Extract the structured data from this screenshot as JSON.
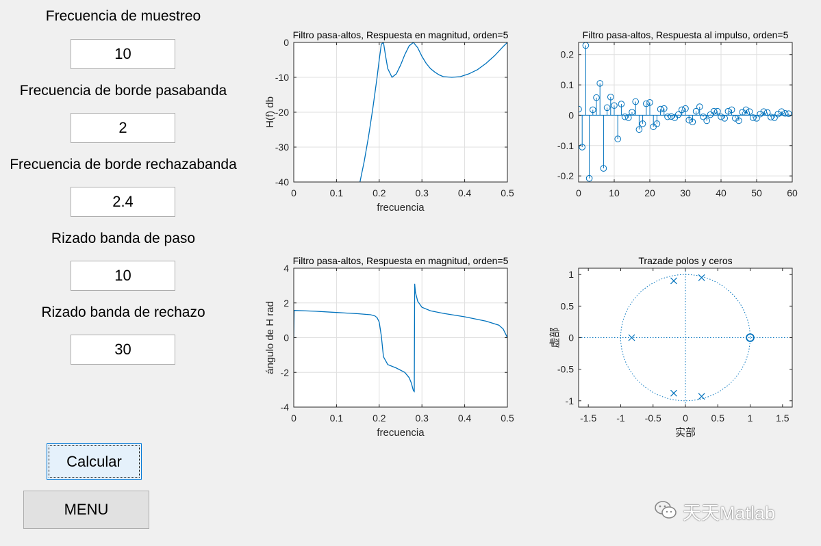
{
  "form": {
    "fs_label": "Frecuencia de muestreo",
    "fs_value": "10",
    "fp_label": "Frecuencia de borde pasabanda",
    "fp_value": "2",
    "fr_label": "Frecuencia de borde rechazabanda",
    "fr_value": "2.4",
    "rp_label": "Rizado banda de paso",
    "rp_value": "10",
    "rs_label": "Rizado banda de rechazo",
    "rs_value": "30",
    "calc_label": "Calcular",
    "menu_label": "MENU"
  },
  "watermark": "天天Matlab",
  "colors": {
    "plot": "#0072bd",
    "grid": "#dfdfdf",
    "axis": "#262626"
  },
  "chart_data": [
    {
      "type": "line",
      "title": "Filtro pasa-altos, Respuesta en magnitud, orden=5",
      "xlabel": "frecuencia",
      "ylabel": "H(f) db",
      "xlim": [
        0,
        0.5
      ],
      "ylim": [
        -40,
        0
      ],
      "xticks": [
        0,
        0.1,
        0.2,
        0.3,
        0.4,
        0.5
      ],
      "yticks": [
        -40,
        -30,
        -20,
        -10,
        0
      ],
      "xtick_labels": [
        "0",
        "0.1",
        "0.2",
        "0.3",
        "0.4",
        "0.5"
      ],
      "ytick_labels": [
        "-40",
        "-30",
        "-20",
        "-10",
        "0"
      ],
      "x": [
        0.155,
        0.165,
        0.175,
        0.185,
        0.195,
        0.2,
        0.205,
        0.21,
        0.215,
        0.22,
        0.23,
        0.24,
        0.25,
        0.26,
        0.27,
        0.28,
        0.29,
        0.3,
        0.31,
        0.32,
        0.33,
        0.34,
        0.35,
        0.37,
        0.39,
        0.41,
        0.43,
        0.45,
        0.47,
        0.49,
        0.5
      ],
      "y": [
        -40,
        -34,
        -27,
        -19,
        -10,
        -5,
        -0.5,
        0,
        -4,
        -7.5,
        -10,
        -9,
        -6.5,
        -3.5,
        -1,
        0,
        -1.5,
        -4,
        -6,
        -7.5,
        -8.5,
        -9.3,
        -9.8,
        -10,
        -9.8,
        -9.0,
        -7.8,
        -6.0,
        -3.8,
        -1.2,
        0
      ]
    },
    {
      "type": "stem",
      "title": "Filtro pasa-altos, Respuesta al impulso, orden=5",
      "xlim": [
        0,
        60
      ],
      "ylim": [
        -0.22,
        0.24
      ],
      "xticks": [
        0,
        10,
        20,
        30,
        40,
        50,
        60
      ],
      "yticks": [
        -0.2,
        -0.1,
        0,
        0.1,
        0.2
      ],
      "xtick_labels": [
        "0",
        "10",
        "20",
        "30",
        "40",
        "50",
        "60"
      ],
      "ytick_labels": [
        "-0.2",
        "-0.1",
        "0",
        "0.1",
        "0.2"
      ],
      "x": [
        0,
        1,
        2,
        3,
        4,
        5,
        6,
        7,
        8,
        9,
        10,
        11,
        12,
        13,
        14,
        15,
        16,
        17,
        18,
        19,
        20,
        21,
        22,
        23,
        24,
        25,
        26,
        27,
        28,
        29,
        30,
        31,
        32,
        33,
        34,
        35,
        36,
        37,
        38,
        39,
        40,
        41,
        42,
        43,
        44,
        45,
        46,
        47,
        48,
        49,
        50,
        51,
        52,
        53,
        54,
        55,
        56,
        57,
        58,
        59
      ],
      "y": [
        0.02,
        -0.105,
        0.23,
        -0.208,
        0.018,
        0.058,
        0.105,
        -0.175,
        0.025,
        0.06,
        0.032,
        -0.078,
        0.037,
        -0.005,
        -0.008,
        0.01,
        0.045,
        -0.047,
        -0.028,
        0.038,
        0.042,
        -0.038,
        -0.028,
        0.02,
        0.022,
        -0.005,
        -0.004,
        -0.008,
        0.002,
        0.018,
        0.022,
        -0.016,
        -0.022,
        0.013,
        0.028,
        -0.005,
        -0.018,
        0.002,
        0.013,
        0.013,
        -0.005,
        -0.01,
        0.013,
        0.018,
        -0.01,
        -0.018,
        0.01,
        0.018,
        0.012,
        -0.008,
        -0.01,
        0.004,
        0.012,
        0.009,
        -0.006,
        -0.008,
        0.004,
        0.012,
        0.006,
        0.005
      ]
    },
    {
      "type": "line",
      "title": "Filtro pasa-altos, Respuesta en magnitud, orden=5",
      "xlabel": "frecuencia",
      "ylabel": "ángulo de H rad",
      "xlim": [
        0,
        0.5
      ],
      "ylim": [
        -4,
        4
      ],
      "xticks": [
        0,
        0.1,
        0.2,
        0.3,
        0.4,
        0.5
      ],
      "yticks": [
        -4,
        -2,
        0,
        2,
        4
      ],
      "xtick_labels": [
        "0",
        "0.1",
        "0.2",
        "0.3",
        "0.4",
        "0.5"
      ],
      "ytick_labels": [
        "-4",
        "-2",
        "0",
        "2",
        "4"
      ],
      "x": [
        0,
        0.001,
        0.05,
        0.1,
        0.15,
        0.18,
        0.19,
        0.195,
        0.2,
        0.205,
        0.21,
        0.22,
        0.24,
        0.26,
        0.27,
        0.275,
        0.28,
        0.282,
        0.283,
        0.285,
        0.29,
        0.3,
        0.32,
        0.35,
        0.4,
        0.45,
        0.48,
        0.49,
        0.5
      ],
      "y": [
        0,
        1.57,
        1.52,
        1.45,
        1.38,
        1.32,
        1.25,
        1.15,
        0.9,
        0.1,
        -1.1,
        -1.55,
        -1.75,
        -2.0,
        -2.3,
        -2.6,
        -3.05,
        -3.1,
        3.1,
        2.6,
        2.1,
        1.75,
        1.55,
        1.4,
        1.2,
        0.95,
        0.72,
        0.5,
        0
      ]
    },
    {
      "type": "scatter",
      "title": "Trazade polos y ceros",
      "xlabel": "实部",
      "ylabel": "虚部",
      "xlim": [
        -1.65,
        1.65
      ],
      "ylim": [
        -1.1,
        1.1
      ],
      "xticks": [
        -1.5,
        -1,
        -0.5,
        0,
        0.5,
        1,
        1.5
      ],
      "yticks": [
        -1,
        -0.5,
        0,
        0.5,
        1
      ],
      "xtick_labels": [
        "-1.5",
        "-1",
        "-0.5",
        "0",
        "0.5",
        "1",
        "1.5"
      ],
      "ytick_labels": [
        "-1",
        "-0.5",
        "0",
        "0.5",
        "1"
      ],
      "poles": [
        [
          -0.83,
          0
        ],
        [
          -0.18,
          0.9
        ],
        [
          -0.18,
          -0.88
        ],
        [
          0.25,
          0.95
        ],
        [
          0.25,
          -0.93
        ]
      ],
      "zeros": [
        [
          1,
          0
        ],
        [
          1,
          0
        ],
        [
          1,
          0
        ]
      ]
    }
  ]
}
